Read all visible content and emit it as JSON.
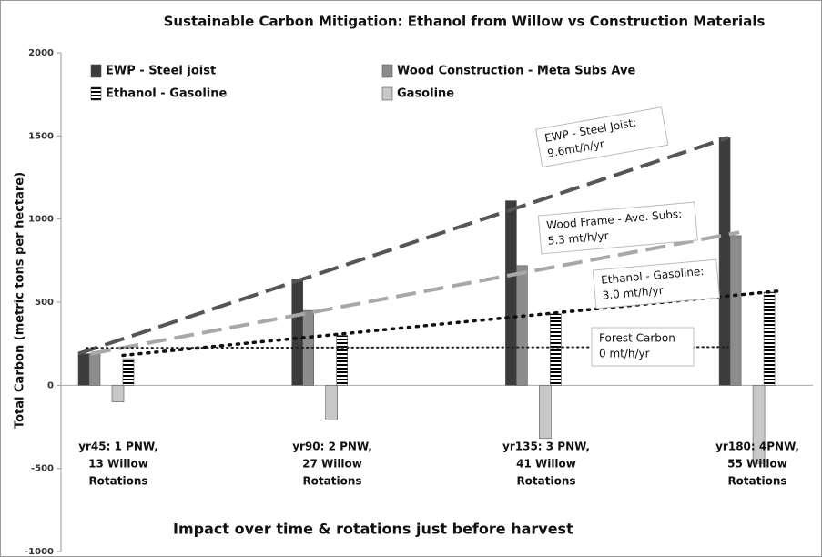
{
  "chart_data": {
    "type": "bar",
    "title": "Sustainable Carbon Mitigation: Ethanol from Willow vs Construction Materials",
    "y_label": "Total Carbon (metric tons per hectare)",
    "x_label": "Impact over time & rotations just before harvest",
    "categories": [
      [
        "yr45: 1 PNW,",
        "13 Willow",
        "Rotations"
      ],
      [
        "yr90: 2 PNW,",
        "27 Willow",
        "Rotations"
      ],
      [
        "yr135:   3 PNW,",
        "41 Willow",
        "Rotations"
      ],
      [
        "yr180:   4PNW,",
        "55 Willow",
        "Rotations"
      ]
    ],
    "series": [
      {
        "name": "EWP - Steel joist",
        "color": "#3b3b3b",
        "values": [
          190,
          640,
          1110,
          1490
        ]
      },
      {
        "name": "Wood Construction - Meta Subs Ave",
        "color": "#8c8c8c",
        "values": [
          190,
          450,
          720,
          900
        ]
      },
      {
        "name": "Ethanol - Gasoline",
        "color": "#000000",
        "pattern": "horizontal-stripes",
        "values": [
          160,
          300,
          430,
          560
        ]
      },
      {
        "name": "Gasoline",
        "color": "#c8c8c8",
        "values": [
          -100,
          -210,
          -320,
          -470
        ]
      }
    ],
    "trendlines": [
      {
        "label": [
          "EWP - Steel Joist:",
          "9.6mt/h/yr"
        ],
        "color": "#555555",
        "style": "dashed",
        "start": 190,
        "end": 1490
      },
      {
        "label": [
          "Wood Frame - Ave. Subs:",
          "5.3 mt/h/yr"
        ],
        "color": "#a8a8a8",
        "style": "dashed",
        "start": 190,
        "end": 920
      },
      {
        "label": [
          "Ethanol - Gasoline:",
          "3.0 mt/h/yr"
        ],
        "color": "#111111",
        "style": "dotted",
        "start": 180,
        "end": 570
      },
      {
        "label": [
          "Forest Carbon",
          "0 mt/h/yr"
        ],
        "color": "#222222",
        "style": "fine-dotted",
        "start": 225,
        "end": 230
      }
    ],
    "ylim": [
      -1000,
      2000
    ],
    "yticks": [
      -1000,
      -500,
      0,
      500,
      1000,
      1500,
      2000
    ]
  }
}
